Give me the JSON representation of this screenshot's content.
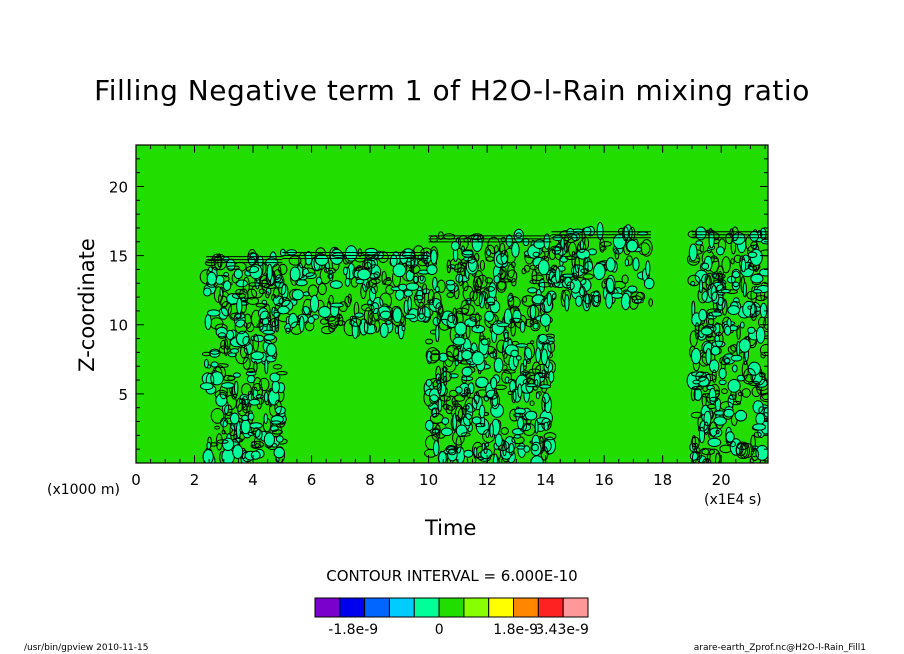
{
  "chart_data": {
    "type": "heatmap",
    "title": "Filling Negative term 1 of H2O-l-Rain mixing ratio",
    "xlabel": "Time",
    "ylabel": "Z-coordinate",
    "x_unit": "(x1E4 s)",
    "y_unit": "(x1000 m)",
    "xlim": [
      0,
      21.6
    ],
    "ylim": [
      0,
      23
    ],
    "x_ticks": [
      "0",
      "2",
      "4",
      "6",
      "8",
      "10",
      "12",
      "14",
      "16",
      "18",
      "20"
    ],
    "y_ticks": [
      "5",
      "10",
      "15",
      "20"
    ],
    "background_color": "#22dd00",
    "contour_interval_label": "CONTOUR INTERVAL = 6.000E-10",
    "active_regions": [
      {
        "x": [
          2.4,
          5.0
        ],
        "z": [
          0,
          15.0
        ]
      },
      {
        "x": [
          5.0,
          10.0
        ],
        "z": [
          9.5,
          15.3
        ]
      },
      {
        "x": [
          10.0,
          14.2
        ],
        "z": [
          0,
          16.5
        ]
      },
      {
        "x": [
          14.2,
          17.6
        ],
        "z": [
          11.5,
          16.8
        ]
      },
      {
        "x": [
          19.0,
          21.6
        ],
        "z": [
          0,
          16.8
        ]
      }
    ],
    "colorbar": {
      "colors": [
        "#7a00cc",
        "#0000ee",
        "#0066ff",
        "#00ccff",
        "#00ff99",
        "#22dd00",
        "#88ff00",
        "#ffff00",
        "#ff8800",
        "#ff2222",
        "#ff9999"
      ],
      "tick_labels": [
        "-1.8e-9",
        "0",
        "1.8e-9",
        "3.43e-9"
      ]
    }
  },
  "footer": {
    "left": "/usr/bin/gpview  2010-11-15",
    "right": "arare-earth_Zprof.nc@H2O-l-Rain_Fill1"
  }
}
